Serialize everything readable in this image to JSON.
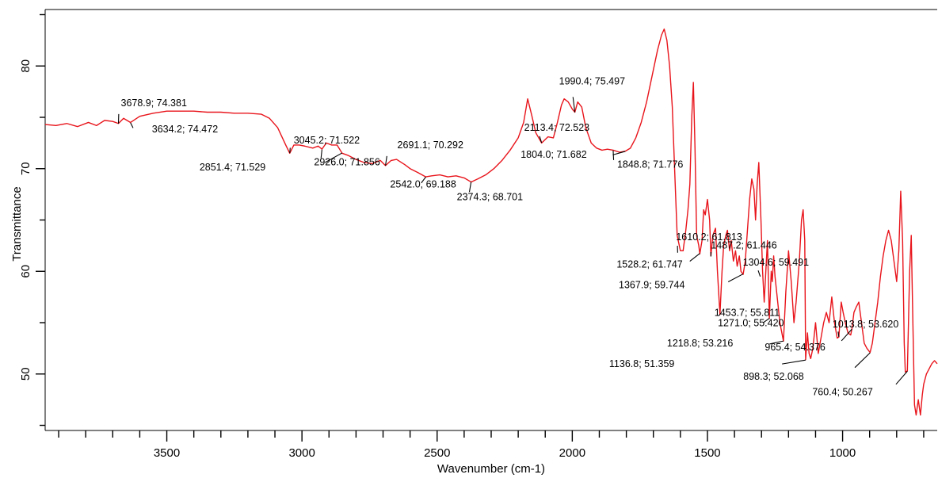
{
  "chart_data": {
    "type": "line",
    "title": "",
    "xlabel": "Wavenumber (cm-1)",
    "ylabel": "Transmittance",
    "xlim": [
      3950,
      650
    ],
    "ylim": [
      44.5,
      85.5
    ],
    "x_reversed": true,
    "grid": false,
    "colors": {
      "line": "#e8141b",
      "leader": "#000000",
      "axis": "#000000"
    },
    "x_ticks": [
      "3500",
      "3000",
      "2500",
      "2000",
      "1500",
      "1000"
    ],
    "y_ticks": [
      "50",
      "60",
      "70",
      "80"
    ],
    "series": [
      {
        "values": [
          [
            3950,
            74.3
          ],
          [
            3910,
            74.2
          ],
          [
            3870,
            74.4
          ],
          [
            3830,
            74.1
          ],
          [
            3790,
            74.5
          ],
          [
            3760,
            74.2
          ],
          [
            3730,
            74.7
          ],
          [
            3700,
            74.6
          ],
          [
            3678.9,
            74.4
          ],
          [
            3660,
            74.9
          ],
          [
            3634.2,
            74.5
          ],
          [
            3600,
            75.1
          ],
          [
            3550,
            75.4
          ],
          [
            3500,
            75.6
          ],
          [
            3450,
            75.6
          ],
          [
            3400,
            75.6
          ],
          [
            3350,
            75.5
          ],
          [
            3300,
            75.5
          ],
          [
            3250,
            75.4
          ],
          [
            3200,
            75.4
          ],
          [
            3150,
            75.3
          ],
          [
            3120,
            74.9
          ],
          [
            3090,
            74.0
          ],
          [
            3060,
            72.3
          ],
          [
            3045.2,
            71.5
          ],
          [
            3030,
            72.3
          ],
          [
            3010,
            72.3
          ],
          [
            2990,
            72.2
          ],
          [
            2960,
            72.0
          ],
          [
            2940,
            72.2
          ],
          [
            2926,
            71.9
          ],
          [
            2910,
            72.5
          ],
          [
            2890,
            72.3
          ],
          [
            2870,
            72.3
          ],
          [
            2851.4,
            71.5
          ],
          [
            2830,
            71.3
          ],
          [
            2800,
            70.9
          ],
          [
            2770,
            70.6
          ],
          [
            2740,
            70.5
          ],
          [
            2710,
            70.8
          ],
          [
            2691.1,
            70.3
          ],
          [
            2670,
            70.8
          ],
          [
            2650,
            70.9
          ],
          [
            2620,
            70.4
          ],
          [
            2600,
            70.0
          ],
          [
            2570,
            69.6
          ],
          [
            2542,
            69.2
          ],
          [
            2520,
            69.3
          ],
          [
            2490,
            69.4
          ],
          [
            2460,
            69.2
          ],
          [
            2430,
            69.3
          ],
          [
            2400,
            69.1
          ],
          [
            2374.3,
            68.7
          ],
          [
            2350,
            69.0
          ],
          [
            2320,
            69.4
          ],
          [
            2290,
            70.0
          ],
          [
            2260,
            70.8
          ],
          [
            2230,
            71.8
          ],
          [
            2200,
            73.0
          ],
          [
            2180,
            74.5
          ],
          [
            2165,
            76.8
          ],
          [
            2150,
            75.2
          ],
          [
            2135,
            73.5
          ],
          [
            2113.4,
            72.5
          ],
          [
            2090,
            73.1
          ],
          [
            2070,
            73.0
          ],
          [
            2055,
            74.5
          ],
          [
            2040,
            76.2
          ],
          [
            2030,
            76.8
          ],
          [
            2015,
            76.5
          ],
          [
            2000,
            75.8
          ],
          [
            1990.4,
            75.5
          ],
          [
            1980,
            76.5
          ],
          [
            1965,
            76.0
          ],
          [
            1950,
            74.0
          ],
          [
            1930,
            72.5
          ],
          [
            1910,
            72.0
          ],
          [
            1890,
            71.8
          ],
          [
            1870,
            71.9
          ],
          [
            1848.8,
            71.8
          ],
          [
            1825,
            71.6
          ],
          [
            1804,
            71.7
          ],
          [
            1785,
            72.0
          ],
          [
            1765,
            73.0
          ],
          [
            1745,
            74.5
          ],
          [
            1725,
            76.5
          ],
          [
            1705,
            79.0
          ],
          [
            1685,
            81.5
          ],
          [
            1670,
            83.0
          ],
          [
            1660,
            83.6
          ],
          [
            1650,
            82.5
          ],
          [
            1640,
            80.0
          ],
          [
            1630,
            76.0
          ],
          [
            1620,
            69.0
          ],
          [
            1612,
            63.5
          ],
          [
            1600,
            62.0
          ],
          [
            1590,
            62.0
          ],
          [
            1580,
            64.0
          ],
          [
            1572,
            66.0
          ],
          [
            1565,
            68.5
          ],
          [
            1558,
            75.0
          ],
          [
            1552,
            78.4
          ],
          [
            1546,
            72.0
          ],
          [
            1540,
            63.5
          ],
          [
            1532,
            62.5
          ],
          [
            1528.2,
            61.7
          ],
          [
            1520,
            63.0
          ],
          [
            1514,
            66.0
          ],
          [
            1508,
            65.5
          ],
          [
            1500,
            67.0
          ],
          [
            1492,
            65.0
          ],
          [
            1487.2,
            61.5
          ],
          [
            1480,
            63.5
          ],
          [
            1470,
            64.2
          ],
          [
            1463,
            60.0
          ],
          [
            1453.7,
            55.8
          ],
          [
            1446,
            60.0
          ],
          [
            1440,
            62.5
          ],
          [
            1432,
            63.5
          ],
          [
            1426,
            64.0
          ],
          [
            1418,
            62.0
          ],
          [
            1412,
            63.0
          ],
          [
            1404,
            61.0
          ],
          [
            1396,
            62.0
          ],
          [
            1390,
            60.5
          ],
          [
            1382,
            61.5
          ],
          [
            1376,
            60.0
          ],
          [
            1367.9,
            59.7
          ],
          [
            1360,
            61.0
          ],
          [
            1352,
            64.0
          ],
          [
            1344,
            67.0
          ],
          [
            1336,
            69.0
          ],
          [
            1328,
            68.0
          ],
          [
            1322,
            65.0
          ],
          [
            1316,
            68.5
          ],
          [
            1310,
            70.6
          ],
          [
            1302,
            65.0
          ],
          [
            1296,
            60.0
          ],
          [
            1290,
            57.0
          ],
          [
            1284,
            60.0
          ],
          [
            1278,
            63.0
          ],
          [
            1271,
            55.4
          ],
          [
            1264,
            60.0
          ],
          [
            1260,
            59.0
          ],
          [
            1255,
            61.5
          ],
          [
            1250,
            59.5
          ],
          [
            1240,
            57.0
          ],
          [
            1232,
            55.0
          ],
          [
            1218.8,
            53.2
          ],
          [
            1210,
            58.0
          ],
          [
            1200,
            62.0
          ],
          [
            1190,
            59.0
          ],
          [
            1180,
            55.0
          ],
          [
            1172,
            57.0
          ],
          [
            1160,
            61.0
          ],
          [
            1152,
            65.0
          ],
          [
            1146,
            66.0
          ],
          [
            1140,
            63.0
          ],
          [
            1136.8,
            51.4
          ],
          [
            1130,
            54.0
          ],
          [
            1124,
            52.0
          ],
          [
            1118,
            51.5
          ],
          [
            1110,
            52.5
          ],
          [
            1100,
            55.0
          ],
          [
            1090,
            52.0
          ],
          [
            1080,
            53.5
          ],
          [
            1070,
            55.0
          ],
          [
            1060,
            56.0
          ],
          [
            1050,
            55.0
          ],
          [
            1040,
            57.5
          ],
          [
            1030,
            55.0
          ],
          [
            1020,
            53.5
          ],
          [
            1013.8,
            53.6
          ],
          [
            1005,
            57.0
          ],
          [
            998,
            56.0
          ],
          [
            990,
            55.0
          ],
          [
            980,
            54.0
          ],
          [
            970,
            53.8
          ],
          [
            965.4,
            54.4
          ],
          [
            958,
            56.0
          ],
          [
            950,
            56.5
          ],
          [
            940,
            57.0
          ],
          [
            930,
            55.0
          ],
          [
            920,
            53.0
          ],
          [
            910,
            52.5
          ],
          [
            898.3,
            52.1
          ],
          [
            890,
            53.0
          ],
          [
            880,
            55.0
          ],
          [
            870,
            57.0
          ],
          [
            860,
            59.5
          ],
          [
            850,
            61.5
          ],
          [
            840,
            63.0
          ],
          [
            830,
            64.0
          ],
          [
            820,
            63.0
          ],
          [
            810,
            61.0
          ],
          [
            800,
            59.0
          ],
          [
            792,
            62.0
          ],
          [
            785,
            67.8
          ],
          [
            778,
            63.0
          ],
          [
            772,
            53.0
          ],
          [
            768,
            50.2
          ],
          [
            760.4,
            50.3
          ],
          [
            752,
            60.0
          ],
          [
            746,
            63.5
          ],
          [
            740,
            55.0
          ],
          [
            734,
            47.0
          ],
          [
            728,
            46.0
          ],
          [
            720,
            47.5
          ],
          [
            712,
            46.0
          ],
          [
            705,
            48.0
          ],
          [
            700,
            49.0
          ],
          [
            690,
            50.0
          ],
          [
            680,
            50.5
          ],
          [
            670,
            51.0
          ],
          [
            660,
            51.3
          ],
          [
            650,
            51.0
          ]
        ]
      }
    ],
    "annotations": [
      {
        "text": "3678.9; 74.381",
        "x": 3678.9,
        "y": 74.381
      },
      {
        "text": "3634.2; 74.472",
        "x": 3634.2,
        "y": 74.472
      },
      {
        "text": "3045.2; 71.522",
        "x": 3045.2,
        "y": 71.522
      },
      {
        "text": "2926.0; 71.856",
        "x": 2926.0,
        "y": 71.856
      },
      {
        "text": "2851.4; 71.529",
        "x": 2851.4,
        "y": 71.529
      },
      {
        "text": "2691.1; 70.292",
        "x": 2691.1,
        "y": 70.292
      },
      {
        "text": "2542.0; 69.188",
        "x": 2542.0,
        "y": 69.188
      },
      {
        "text": "2374.3; 68.701",
        "x": 2374.3,
        "y": 68.701
      },
      {
        "text": "2113.4; 72.523",
        "x": 2113.4,
        "y": 72.523
      },
      {
        "text": "1990.4; 75.497",
        "x": 1990.4,
        "y": 75.497
      },
      {
        "text": "1804.0; 71.682",
        "x": 1804.0,
        "y": 71.682
      },
      {
        "text": "1848.8; 71.776",
        "x": 1848.8,
        "y": 71.776
      },
      {
        "text": "1610.2; 61.813",
        "x": 1610.2,
        "y": 61.813
      },
      {
        "text": "1487.2; 61.446",
        "x": 1487.2,
        "y": 61.446
      },
      {
        "text": "1528.2; 61.747",
        "x": 1528.2,
        "y": 61.747
      },
      {
        "text": "1304.6; 59.491",
        "x": 1304.6,
        "y": 59.491
      },
      {
        "text": "1367.9; 59.744",
        "x": 1367.9,
        "y": 59.744
      },
      {
        "text": "1453.7; 55.811",
        "x": 1453.7,
        "y": 55.811
      },
      {
        "text": "1013.8; 53.620",
        "x": 1013.8,
        "y": 53.62
      },
      {
        "text": "1271.0; 55.420",
        "x": 1271.0,
        "y": 55.42
      },
      {
        "text": "1218.8; 53.216",
        "x": 1218.8,
        "y": 53.216
      },
      {
        "text": "1136.8; 51.359",
        "x": 1136.8,
        "y": 51.359
      },
      {
        "text": "965.4; 54.376",
        "x": 965.4,
        "y": 54.376
      },
      {
        "text": "898.3; 52.068",
        "x": 898.3,
        "y": 52.068
      },
      {
        "text": "760.4; 50.267",
        "x": 760.4,
        "y": 50.267
      }
    ]
  }
}
